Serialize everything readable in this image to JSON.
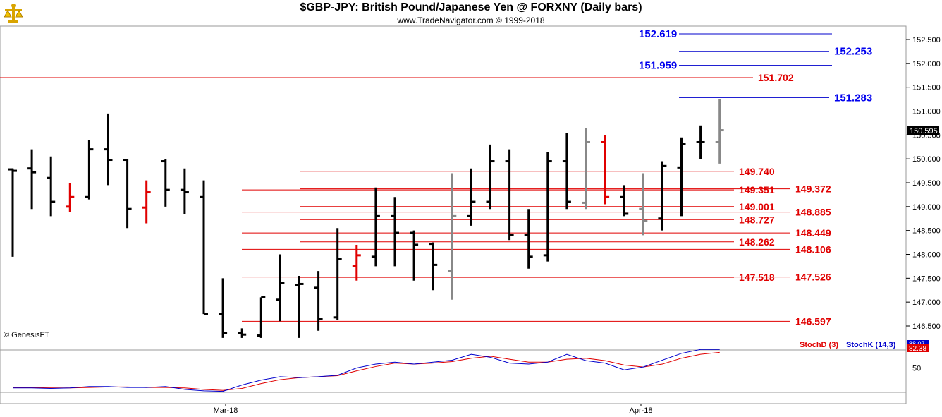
{
  "header": {
    "title": "$GBP-JPY:  British Pound/Japanese Yen @ FORXNY  (Daily bars)",
    "subtitle": "www.TradeNavigator.com © 1999-2018",
    "logo_icon": "gold-scale-icon"
  },
  "chart_data": {
    "type": "ohlc",
    "ylim": [
      146.2,
      152.8
    ],
    "yticks": [
      "146.500",
      "147.000",
      "147.500",
      "148.000",
      "148.500",
      "149.000",
      "149.500",
      "150.000",
      "150.500",
      "151.000",
      "151.500",
      "152.000",
      "152.500"
    ],
    "last_price_label": "150.595",
    "watermark": "© GenesisFT",
    "x_labels": [
      "Mar-18",
      "Apr-18"
    ],
    "colors": {
      "up": "#000000",
      "down_key": "#e00000",
      "neutral": "#888888",
      "support": "#e00000",
      "target": "#0000cc"
    },
    "bars": [
      {
        "o": 149.78,
        "h": 149.8,
        "l": 147.95,
        "c": 149.75,
        "color": "black"
      },
      {
        "o": 149.8,
        "h": 150.2,
        "l": 148.95,
        "c": 149.72,
        "color": "black"
      },
      {
        "o": 149.6,
        "h": 150.05,
        "l": 148.8,
        "c": 149.1,
        "color": "black"
      },
      {
        "o": 149.0,
        "h": 149.5,
        "l": 148.88,
        "c": 149.2,
        "color": "red"
      },
      {
        "o": 149.2,
        "h": 150.4,
        "l": 149.15,
        "c": 150.2,
        "color": "black"
      },
      {
        "o": 150.2,
        "h": 150.95,
        "l": 149.45,
        "c": 149.98,
        "color": "black"
      },
      {
        "o": 149.98,
        "h": 150.0,
        "l": 148.55,
        "c": 148.95,
        "color": "black"
      },
      {
        "o": 148.98,
        "h": 149.55,
        "l": 148.65,
        "c": 149.3,
        "color": "red"
      },
      {
        "o": 149.95,
        "h": 150.0,
        "l": 149.0,
        "c": 149.35,
        "color": "black"
      },
      {
        "o": 149.35,
        "h": 149.8,
        "l": 148.85,
        "c": 149.3,
        "color": "black"
      },
      {
        "o": 149.2,
        "h": 149.55,
        "l": 146.75,
        "c": 146.75,
        "color": "black"
      },
      {
        "o": 146.75,
        "h": 147.5,
        "l": 146.25,
        "c": 146.35,
        "color": "black"
      },
      {
        "o": 146.35,
        "h": 146.45,
        "l": 146.25,
        "c": 146.32,
        "color": "black"
      },
      {
        "o": 146.3,
        "h": 147.1,
        "l": 146.25,
        "c": 147.1,
        "color": "black"
      },
      {
        "o": 147.05,
        "h": 148.0,
        "l": 146.6,
        "c": 147.4,
        "color": "black"
      },
      {
        "o": 147.35,
        "h": 147.55,
        "l": 146.25,
        "c": 147.38,
        "color": "black"
      },
      {
        "o": 147.3,
        "h": 147.65,
        "l": 146.4,
        "c": 146.65,
        "color": "black"
      },
      {
        "o": 146.68,
        "h": 148.55,
        "l": 146.62,
        "c": 147.9,
        "color": "black"
      },
      {
        "o": 147.75,
        "h": 148.2,
        "l": 147.45,
        "c": 147.98,
        "color": "red"
      },
      {
        "o": 147.95,
        "h": 149.4,
        "l": 147.75,
        "c": 148.8,
        "color": "black"
      },
      {
        "o": 148.8,
        "h": 149.2,
        "l": 147.75,
        "c": 148.45,
        "color": "black"
      },
      {
        "o": 148.45,
        "h": 148.5,
        "l": 147.45,
        "c": 148.2,
        "color": "black"
      },
      {
        "o": 148.22,
        "h": 148.25,
        "l": 147.25,
        "c": 147.78,
        "color": "black"
      },
      {
        "o": 147.65,
        "h": 149.7,
        "l": 147.05,
        "c": 148.8,
        "color": "gray"
      },
      {
        "o": 148.8,
        "h": 149.8,
        "l": 148.6,
        "c": 149.1,
        "color": "black"
      },
      {
        "o": 149.1,
        "h": 150.3,
        "l": 148.95,
        "c": 149.95,
        "color": "black"
      },
      {
        "o": 149.95,
        "h": 150.2,
        "l": 148.3,
        "c": 148.4,
        "color": "black"
      },
      {
        "o": 148.4,
        "h": 148.95,
        "l": 147.7,
        "c": 147.95,
        "color": "black"
      },
      {
        "o": 147.98,
        "h": 150.15,
        "l": 147.85,
        "c": 149.95,
        "color": "black"
      },
      {
        "o": 149.95,
        "h": 150.55,
        "l": 148.95,
        "c": 149.1,
        "color": "black"
      },
      {
        "o": 149.08,
        "h": 150.65,
        "l": 148.95,
        "c": 150.35,
        "color": "gray"
      },
      {
        "o": 150.35,
        "h": 150.5,
        "l": 149.05,
        "c": 149.2,
        "color": "red"
      },
      {
        "o": 149.2,
        "h": 149.45,
        "l": 148.8,
        "c": 148.85,
        "color": "black"
      },
      {
        "o": 148.95,
        "h": 149.7,
        "l": 148.4,
        "c": 148.7,
        "color": "gray"
      },
      {
        "o": 148.75,
        "h": 149.95,
        "l": 148.5,
        "c": 149.85,
        "color": "black"
      },
      {
        "o": 149.82,
        "h": 150.45,
        "l": 148.8,
        "c": 150.32,
        "color": "black"
      },
      {
        "o": 150.35,
        "h": 150.7,
        "l": 150.0,
        "c": 150.35,
        "color": "black"
      },
      {
        "o": 150.35,
        "h": 151.25,
        "l": 149.9,
        "c": 150.6,
        "color": "gray"
      }
    ],
    "support_levels": [
      {
        "value": 151.702,
        "label": "151.702",
        "extent": "full"
      },
      {
        "value": 149.74,
        "label": "149.740"
      },
      {
        "value": 149.351,
        "label": "149.351"
      },
      {
        "value": 149.372,
        "label": "149.372"
      },
      {
        "value": 149.001,
        "label": "149.001"
      },
      {
        "value": 148.885,
        "label": "148.885"
      },
      {
        "value": 148.727,
        "label": "148.727"
      },
      {
        "value": 148.449,
        "label": "148.449"
      },
      {
        "value": 148.262,
        "label": "148.262"
      },
      {
        "value": 148.106,
        "label": "148.106"
      },
      {
        "value": 147.518,
        "label": "147.518"
      },
      {
        "value": 147.526,
        "label": "147.526"
      },
      {
        "value": 146.597,
        "label": "146.597"
      }
    ],
    "target_levels": [
      {
        "value": 152.619,
        "label": "152.619"
      },
      {
        "value": 152.253,
        "label": "152.253"
      },
      {
        "value": 151.959,
        "label": "151.959"
      },
      {
        "value": 151.283,
        "label": "151.283"
      }
    ],
    "stochastic": {
      "stochD_label": "StochD (3)",
      "stochK_label": "StochK (14,3)",
      "stochK_value": "88.07",
      "stochD_value": "82.38",
      "yticks": [
        "50"
      ],
      "ylim": [
        0,
        100
      ],
      "stochK": [
        9,
        9,
        8,
        9,
        12,
        12,
        10,
        10,
        12,
        6,
        3,
        2,
        15,
        25,
        32,
        30,
        32,
        35,
        50,
        58,
        62,
        58,
        62,
        66,
        78,
        72,
        60,
        58,
        62,
        78,
        65,
        60,
        46,
        52,
        66,
        80,
        88,
        88
      ],
      "stochD": [
        10,
        10,
        9,
        9,
        10,
        11,
        11,
        10,
        10,
        9,
        6,
        4,
        8,
        18,
        26,
        30,
        32,
        34,
        44,
        53,
        60,
        58,
        60,
        63,
        70,
        74,
        68,
        62,
        62,
        68,
        70,
        65,
        56,
        52,
        58,
        70,
        78,
        82
      ]
    }
  }
}
